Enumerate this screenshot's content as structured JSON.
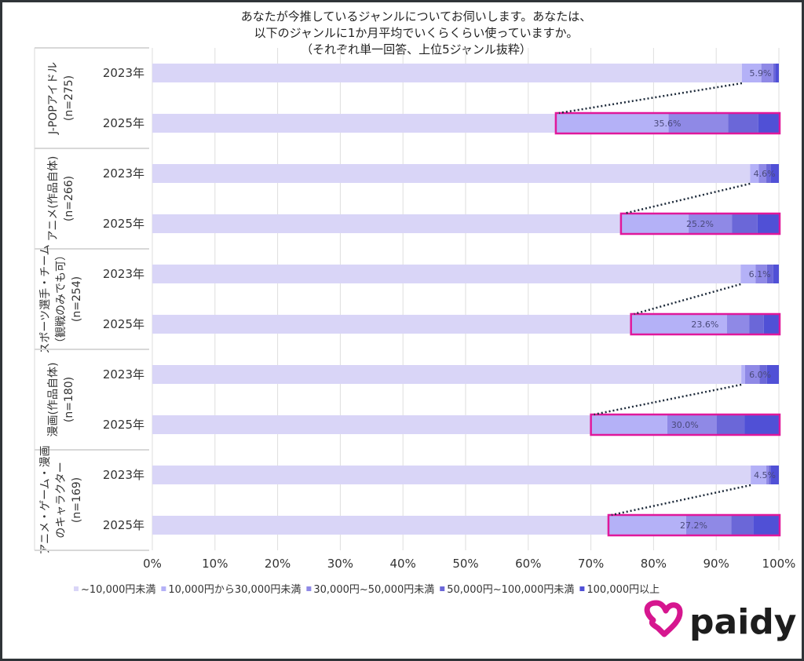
{
  "chart_data": {
    "type": "bar",
    "orientation": "horizontal",
    "stacked": true,
    "title_lines": [
      "あなたが今推しているジャンルについてお伺いします。あなたは、",
      "以下のジャンルに1か月平均でいくらくらい使っていますか。",
      "（それぞれ単一回答、上位5ジャンル抜粋）"
    ],
    "xlim": [
      0,
      100
    ],
    "x_ticks": [
      "0%",
      "10%",
      "20%",
      "30%",
      "40%",
      "50%",
      "60%",
      "70%",
      "80%",
      "90%",
      "100%"
    ],
    "grid": true,
    "legend_position": "bottom",
    "series_names": [
      "~10,000円未満",
      "10,000円から30,000円未満",
      "30,000円~50,000円未満",
      "50,000円~100,000円未満",
      "100,000円以上"
    ],
    "colors": [
      "#d9d5f7",
      "#b4b1f7",
      "#8f89e6",
      "#6b67d8",
      "#5050d6"
    ],
    "highlight_color": "#e0189b",
    "groups": [
      {
        "label_lines": [
          "J-POPアイドル",
          "(n=275)"
        ],
        "rows": [
          {
            "year": "2023年",
            "values": [
              94.1,
              3.1,
              1.9,
              0.3,
              0.6
            ],
            "label": "5.9%"
          },
          {
            "year": "2025年",
            "values": [
              64.4,
              18.0,
              9.5,
              4.8,
              3.3
            ],
            "label": "35.6%"
          }
        ]
      },
      {
        "label_lines": [
          "アニメ(作品自体)",
          "(n=266)"
        ],
        "rows": [
          {
            "year": "2023年",
            "values": [
              95.4,
              1.4,
              1.2,
              0.7,
              1.3
            ],
            "label": "4.6%"
          },
          {
            "year": "2025年",
            "values": [
              74.8,
              10.8,
              6.9,
              4.1,
              3.4
            ],
            "label": "25.2%"
          }
        ]
      },
      {
        "label_lines": [
          "スポーツ選手・チーム",
          "（観戦のみでも可）",
          "(n=254)"
        ],
        "rows": [
          {
            "year": "2023年",
            "values": [
              93.9,
              2.4,
              1.8,
              1.0,
              0.9
            ],
            "label": "6.1%"
          },
          {
            "year": "2025年",
            "values": [
              76.4,
              15.3,
              3.6,
              2.3,
              2.4
            ],
            "label": "23.6%"
          }
        ]
      },
      {
        "label_lines": [
          "漫画(作品自体)",
          "(n=180)"
        ],
        "rows": [
          {
            "year": "2023年",
            "values": [
              94.0,
              0.6,
              2.3,
              1.2,
              1.9
            ],
            "label": "6.0%"
          },
          {
            "year": "2025年",
            "values": [
              70.0,
              12.2,
              7.9,
              4.4,
              5.5
            ],
            "label": "30.0%"
          }
        ]
      },
      {
        "label_lines": [
          "アニメ・ゲーム・漫画",
          "のキャラクター",
          "(n=169)"
        ],
        "rows": [
          {
            "year": "2023年",
            "values": [
              95.5,
              2.5,
              0.4,
              0.3,
              1.3
            ],
            "label": "4.5%"
          },
          {
            "year": "2025年",
            "values": [
              72.8,
              12.4,
              7.2,
              3.5,
              4.1
            ],
            "label": "27.2%"
          }
        ]
      }
    ]
  },
  "logo": {
    "text": "paidy",
    "color": "#d6168f"
  }
}
